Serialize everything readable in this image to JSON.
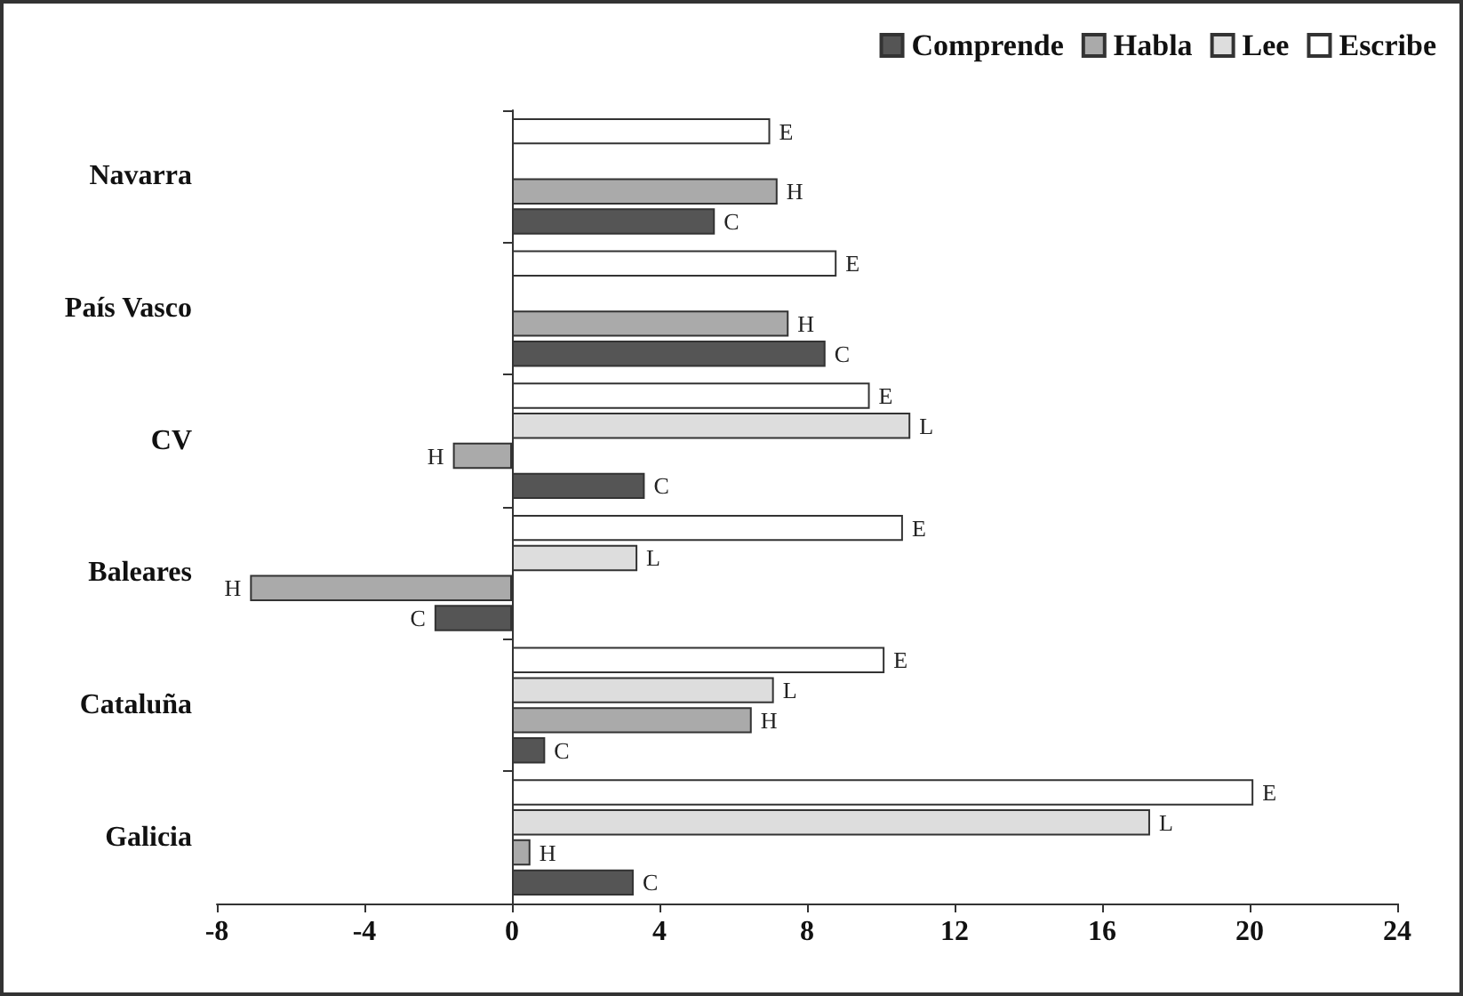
{
  "chart_data": {
    "type": "bar",
    "orientation": "horizontal",
    "categories": [
      "Navarra",
      "País Vasco",
      "CV",
      "Baleares",
      "Cataluña",
      "Galicia"
    ],
    "series": [
      {
        "name": "Comprende",
        "color": "#555555",
        "values": [
          5.5,
          8.5,
          3.6,
          -2.1,
          0.9,
          3.3
        ],
        "value_labels": [
          "C",
          "C",
          "C",
          "C",
          "C",
          "C"
        ]
      },
      {
        "name": "Habla",
        "color": "#aaaaaa",
        "values": [
          7.2,
          7.5,
          -1.6,
          -7.1,
          6.5,
          0.5
        ],
        "value_labels": [
          "H",
          "H",
          "H",
          "H",
          "H",
          "H"
        ]
      },
      {
        "name": "Lee",
        "color": "#dddddd",
        "values": [
          null,
          null,
          10.8,
          3.4,
          7.1,
          17.3
        ],
        "value_labels": [
          null,
          null,
          "L",
          "L",
          "L",
          "L"
        ]
      },
      {
        "name": "Escribe",
        "color": "#ffffff",
        "values": [
          7.0,
          8.8,
          9.7,
          10.6,
          10.1,
          20.1
        ],
        "value_labels": [
          "E",
          "E",
          "E",
          "E",
          "E",
          "E"
        ]
      }
    ],
    "xlim": [
      -8,
      24
    ],
    "xticks": [
      -8,
      -4,
      0,
      4,
      8,
      12,
      16,
      20,
      24
    ],
    "legend": "top right"
  }
}
